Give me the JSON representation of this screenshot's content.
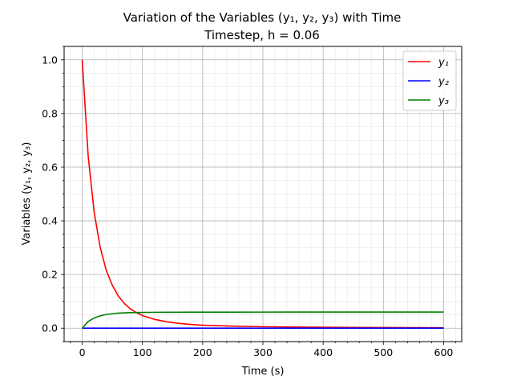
{
  "chart_data": {
    "type": "line",
    "title_line1": "Variation of the Variables (y₁, y₂, y₃) with Time",
    "title_line2": "Timestep, h = 0.06",
    "xlabel": "Time (s)",
    "ylabel": "Variables (y₁, y₂, y₃)",
    "xlim": [
      -30,
      630
    ],
    "ylim": [
      -0.05,
      1.05
    ],
    "xticks": [
      0,
      100,
      200,
      300,
      400,
      500,
      600
    ],
    "xtick_labels": [
      "0",
      "100",
      "200",
      "300",
      "400",
      "500",
      "600"
    ],
    "yticks": [
      0.0,
      0.2,
      0.4,
      0.6,
      0.8,
      1.0
    ],
    "ytick_labels": [
      "0.0",
      "0.2",
      "0.4",
      "0.6",
      "0.8",
      "1.0"
    ],
    "grid": true,
    "minor_grid": true,
    "legend_placement": "top-right",
    "x": [
      0,
      10,
      20,
      30,
      40,
      50,
      60,
      70,
      80,
      90,
      100,
      120,
      140,
      160,
      180,
      200,
      250,
      300,
      350,
      400,
      450,
      500,
      550,
      600
    ],
    "series": [
      {
        "name": "y₁",
        "color": "#ff0000",
        "values": [
          1.0,
          0.64,
          0.43,
          0.3,
          0.215,
          0.16,
          0.12,
          0.092,
          0.072,
          0.058,
          0.047,
          0.033,
          0.024,
          0.018,
          0.014,
          0.011,
          0.0075,
          0.0055,
          0.0042,
          0.0034,
          0.0028,
          0.0024,
          0.002,
          0.0018
        ]
      },
      {
        "name": "y₂",
        "color": "#0000ff",
        "values": [
          0.0,
          0.0002,
          0.0001,
          0.0001,
          0.0001,
          0.0001,
          0.0001,
          0.0001,
          0.0001,
          0.0001,
          0.0001,
          0.0001,
          0.0001,
          0.0001,
          0.0001,
          0.0001,
          0.0001,
          0.0001,
          0.0001,
          0.0001,
          0.0001,
          0.0001,
          0.0001,
          0.0001
        ]
      },
      {
        "name": "y₃",
        "color": "#008000",
        "values": [
          0.0,
          0.025,
          0.038,
          0.046,
          0.051,
          0.054,
          0.056,
          0.057,
          0.0578,
          0.0583,
          0.0587,
          0.0592,
          0.0594,
          0.0595,
          0.0596,
          0.0597,
          0.0598,
          0.0599,
          0.06,
          0.06,
          0.06,
          0.06,
          0.06,
          0.06
        ]
      }
    ]
  }
}
